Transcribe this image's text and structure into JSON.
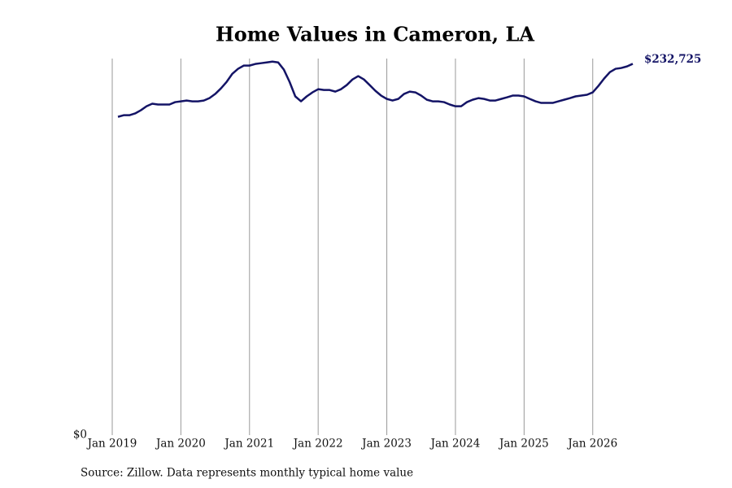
{
  "chart_data": {
    "type": "line",
    "title": "Home Values in Cameron, LA",
    "source": "Source: Zillow. Data represents monthly typical home value",
    "x": [
      "2019-02",
      "2019-03",
      "2019-04",
      "2019-05",
      "2019-06",
      "2019-07",
      "2019-08",
      "2019-09",
      "2019-10",
      "2019-11",
      "2019-12",
      "2020-01",
      "2020-02",
      "2020-03",
      "2020-04",
      "2020-05",
      "2020-06",
      "2020-07",
      "2020-08",
      "2020-09",
      "2020-10",
      "2020-11",
      "2020-12",
      "2021-01",
      "2021-02",
      "2021-03",
      "2021-04",
      "2021-05",
      "2021-06",
      "2021-07",
      "2021-08",
      "2021-09",
      "2021-10",
      "2021-11",
      "2021-12",
      "2022-01",
      "2022-02",
      "2022-03",
      "2022-04",
      "2022-05",
      "2022-06",
      "2022-07",
      "2022-08",
      "2022-09",
      "2022-10",
      "2022-11",
      "2022-12",
      "2023-01",
      "2023-02",
      "2023-03",
      "2023-04",
      "2023-05",
      "2023-06",
      "2023-07",
      "2023-08",
      "2023-09",
      "2023-10",
      "2023-11",
      "2023-12",
      "2024-01",
      "2024-02",
      "2024-03",
      "2024-04",
      "2024-05",
      "2024-06",
      "2024-07",
      "2024-08",
      "2024-09",
      "2024-10",
      "2024-11",
      "2024-12",
      "2025-01",
      "2025-02",
      "2025-03",
      "2025-04",
      "2025-05",
      "2025-06",
      "2025-07",
      "2025-08",
      "2025-09",
      "2025-10",
      "2025-11",
      "2025-12",
      "2026-01",
      "2026-02",
      "2026-03",
      "2026-04",
      "2026-05",
      "2026-06",
      "2026-07",
      "2026-08"
    ],
    "series": [
      {
        "color": "#141466",
        "values": [
          199500,
          200500,
          200500,
          201600,
          203600,
          206100,
          207700,
          207200,
          207200,
          207200,
          208700,
          209200,
          209700,
          209200,
          209200,
          209700,
          211200,
          213800,
          217300,
          221400,
          226500,
          229600,
          231600,
          231600,
          232600,
          233100,
          233600,
          234100,
          233600,
          229100,
          221400,
          212300,
          209200,
          212300,
          214800,
          216800,
          216300,
          216300,
          215300,
          216800,
          219400,
          222900,
          225000,
          222900,
          219400,
          215800,
          212800,
          210700,
          209700,
          210700,
          213800,
          215300,
          214800,
          212800,
          210200,
          209200,
          209200,
          208700,
          207200,
          206100,
          206100,
          208700,
          210200,
          211200,
          210700,
          209700,
          209700,
          210700,
          211700,
          212800,
          212800,
          212300,
          210700,
          209200,
          208200,
          208200,
          208200,
          209200,
          210200,
          211200,
          212300,
          212800,
          213300,
          214800,
          218900,
          223500,
          227500,
          229600,
          230100,
          231100,
          232725
        ],
        "value_labels": [
          null,
          null,
          null,
          null,
          null,
          null,
          null,
          null,
          null,
          null,
          null,
          null,
          null,
          null,
          null,
          null,
          null,
          null,
          null,
          null,
          null,
          null,
          null,
          null,
          null,
          null,
          null,
          null,
          null,
          null,
          null,
          null,
          null,
          null,
          null,
          null,
          null,
          null,
          null,
          null,
          null,
          null,
          null,
          null,
          null,
          null,
          null,
          null,
          null,
          null,
          null,
          null,
          null,
          null,
          null,
          null,
          null,
          null,
          null,
          null,
          null,
          null,
          null,
          null,
          null,
          null,
          null,
          null,
          null,
          null,
          null,
          null,
          null,
          null,
          null,
          null,
          null,
          null,
          null,
          null,
          null,
          null,
          null,
          null,
          null,
          null,
          null,
          null,
          null,
          null,
          "$232,725"
        ]
      }
    ],
    "xlim": [
      "2019-01",
      "2026-08"
    ],
    "xticks": [
      {
        "value": "2019-01",
        "label": "Jan 2019"
      },
      {
        "value": "2020-01",
        "label": "Jan 2020"
      },
      {
        "value": "2021-01",
        "label": "Jan 2021"
      },
      {
        "value": "2022-01",
        "label": "Jan 2022"
      },
      {
        "value": "2023-01",
        "label": "Jan 2023"
      },
      {
        "value": "2024-01",
        "label": "Jan 2024"
      },
      {
        "value": "2025-01",
        "label": "Jan 2025"
      },
      {
        "value": "2026-01",
        "label": "Jan 2026"
      }
    ],
    "ylim": [
      0,
      236000
    ],
    "yticks": [
      {
        "value": 0,
        "label": "$0"
      }
    ],
    "grid": true
  }
}
